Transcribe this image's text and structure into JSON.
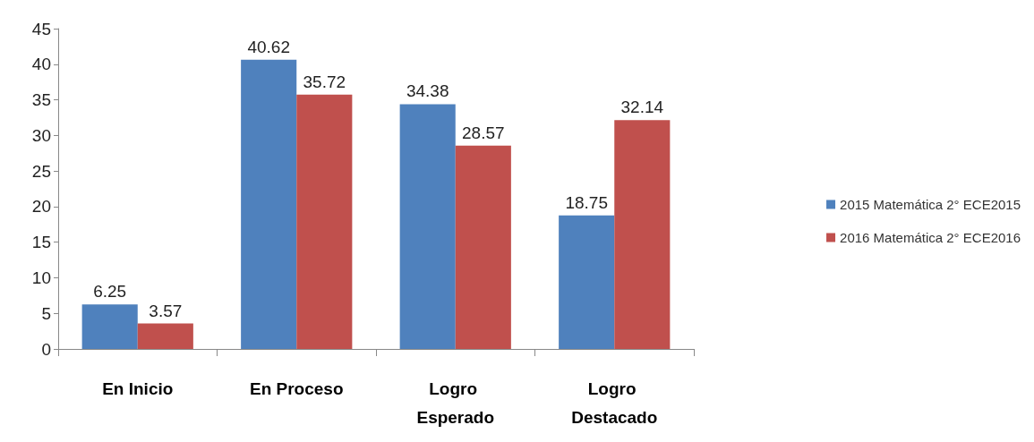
{
  "chart_data": {
    "type": "bar",
    "categories": [
      "En Inicio",
      "En Proceso",
      "Logro Esperado",
      "Logro Destacado"
    ],
    "series": [
      {
        "name": "2015 Matemática 2° ECE2015",
        "color": "#4f81bd",
        "values": [
          6.25,
          40.62,
          34.38,
          18.75
        ]
      },
      {
        "name": "2016 Matemática 2° ECE2016",
        "color": "#c0504d",
        "values": [
          3.57,
          35.72,
          28.57,
          32.14
        ]
      }
    ],
    "ylim": [
      0,
      45
    ],
    "yticks": [
      0,
      5,
      10,
      15,
      20,
      25,
      30,
      35,
      40,
      45
    ],
    "data_labels": true,
    "grid": false,
    "legend": "right"
  }
}
